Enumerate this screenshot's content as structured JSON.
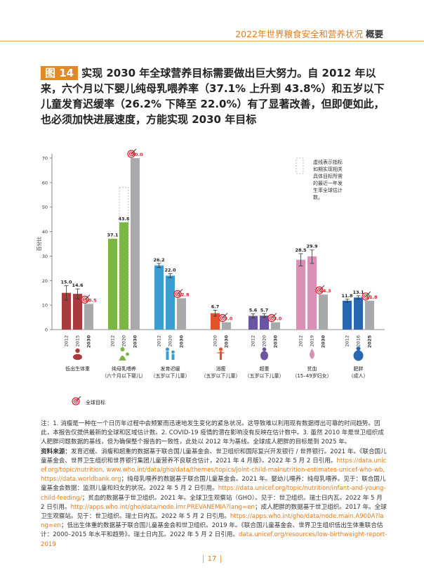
{
  "header": {
    "prefix": "2022年世界粮食安全和营养状况",
    "suffix": "概要"
  },
  "figure": {
    "tag": "图 14",
    "title": "实现 2030 年全球营养目标需要做出巨大努力。自 2012 年以来，六个月以下婴儿纯母乳喂养率（37.1% 上升到 43.8%）和五岁以下儿童发育迟缓率（26.2% 下降至 22.0%）有了显著改善，但即便如此，也必须加快进展速度，方能实现 2030 年目标"
  },
  "colors": {
    "accent": "#e07b1f",
    "dashed": "#aaaaaa",
    "target": "#a7a9ac",
    "target_label": "#e31e2d"
  },
  "chart_data": {
    "type": "bar",
    "ylabel": "百分比",
    "ylim": [
      0,
      70
    ],
    "yticks": [
      0,
      10,
      20,
      30,
      40,
      50,
      60,
      70
    ],
    "legend_dashed": "虚线表示指标如期实现相关具体目标所需的最近一年发生率全球估计数。",
    "legend_target": "全球目标",
    "groups": [
      {
        "id": "lbw",
        "color": "#a93a3e",
        "icon": "baby-icon",
        "label_lines": [
          "低出生体重"
        ],
        "bars": [
          {
            "year": "2012",
            "value": 15.0,
            "label": "15.0",
            "error": [
              12.0,
              18.0
            ]
          },
          {
            "year": "2015",
            "value": 14.6,
            "label": "14.6",
            "error": [
              12.6,
              16.6
            ]
          },
          {
            "year": "2030",
            "value": 10.5,
            "label": "10.5",
            "target": true
          }
        ]
      },
      {
        "id": "ebf",
        "color": "#7ab741",
        "icon": "breastfeeding-icon",
        "label_lines": [
          "纯母乳喂养",
          "（六个月以下婴儿）"
        ],
        "dashed": {
          "value": 58.0
        },
        "bars": [
          {
            "year": "2012",
            "value": 37.1,
            "label": "37.1"
          },
          {
            "year": "2020",
            "value": 43.8,
            "label": "43.8"
          },
          {
            "year": "2030",
            "value": 70.0,
            "label": "70.0",
            "target": true
          }
        ]
      },
      {
        "id": "stunting",
        "color": "#3b9ccf",
        "icon": "stunting-icon",
        "label_lines": [
          "发育迟缓",
          "（五岁以下儿童）"
        ],
        "bars": [
          {
            "year": "2012",
            "value": 26.2,
            "label": "26.2",
            "error": [
              25.4,
              27.0
            ]
          },
          {
            "year": "2020",
            "value": 22.0,
            "label": "22.0",
            "error": [
              21.2,
              22.8
            ]
          },
          {
            "year": "2030",
            "value": 12.8,
            "label": "12.8",
            "target": true
          }
        ]
      },
      {
        "id": "wasting",
        "color": "#e1532b",
        "icon": "wasting-icon",
        "label_lines": [
          "消瘦",
          "（五岁以下儿童）"
        ],
        "bars": [
          {
            "year": "2020",
            "value": 6.7,
            "label": "6.7",
            "error": [
              5.5,
              7.9
            ]
          },
          {
            "year": "2030",
            "value": 3.0,
            "label": "3.0",
            "target": true
          }
        ]
      },
      {
        "id": "overweight",
        "color": "#6a54a3",
        "icon": "overweight-icon",
        "label_lines": [
          "超重",
          "（五岁以下儿童）"
        ],
        "bars": [
          {
            "year": "2012",
            "value": 5.6,
            "label": "5.6",
            "error": [
              4.8,
              6.4
            ]
          },
          {
            "year": "2020",
            "value": 5.7,
            "label": "5.7",
            "error": [
              4.9,
              6.5
            ]
          },
          {
            "year": "2030",
            "value": 3.0,
            "label": "3.0",
            "target": true
          }
        ]
      },
      {
        "id": "anaemia",
        "color": "#d890b7",
        "icon": "anaemia-icon",
        "label_lines": [
          "贫血",
          "（15–49岁妇女）"
        ],
        "bars": [
          {
            "year": "2012",
            "value": 28.5,
            "label": "28.5",
            "error": [
              26.0,
              31.0
            ]
          },
          {
            "year": "2019",
            "value": 29.9,
            "label": "29.9",
            "error": [
              27.0,
              32.5
            ]
          },
          {
            "year": "2030",
            "value": 14.3,
            "label": "14.3",
            "target": true
          }
        ]
      },
      {
        "id": "obesity",
        "color": "#2a67b1",
        "icon": "obesity-icon",
        "label_lines": [
          "肥胖",
          "（成人）"
        ],
        "bars": [
          {
            "year": "2012",
            "value": 11.8,
            "label": "11.8",
            "error": [
              11.2,
              12.4
            ]
          },
          {
            "year": "2016",
            "value": 13.1,
            "label": "13.1",
            "error": [
              12.4,
              13.8
            ]
          },
          {
            "year": "2025",
            "value": 11.8,
            "label": "11.8",
            "target": true
          }
        ]
      }
    ]
  },
  "notes": {
    "note": "注：1. 消瘦是一种在一个日历年过程中会频繁而迅速地发生变化的紧急状况，这导致难以利用现有数据得出可靠的时间趋势。因此，本报告仅提供最新的全球和区域估计数。2. COVID-19 疫情的潜在影响没有反映在估计数中。3. 虽然 2010 年是世卫组织成人肥胖问题数据的基线，但为确保整个报告的一致性，此处以 2012 年为基线。全球成人肥胖的目标是到 2025 年。",
    "sources_label": "资料来源：",
    "sources_1": "发育迟缓、消瘦和超重的数据基于联合国儿童基金会、世卫组织和国际复兴开发银行 / 世界银行。2021 年。《联合国儿童基金会、世界卫生组织和世界银行集团儿童营养不良联合估计，2021 年 4 月版》。2022 年 5 月 2 日引用。",
    "link_1": "https://data.unicef.org/topic/nutrition, www.who.int/data/gho/data/themes/topics/joint-child-malnutrition-estimates-unicef-who-wb, https://data.worldbank.org",
    "sources_2": "；纯母乳喂养的数据基于联合国儿童基金会。2021 年。婴幼儿喂养：纯母乳喂养。见于：联合国儿童基金会数据：监测儿童和妇女的状况。2022 年 5 月 2 日引用。",
    "link_2": "https://data.unicef.org/topic/nutrition/infant-and-young-child-feeding/",
    "sources_3": "；贫血的数据基于世卫组织。2021 年。全球卫生观察站（GHO）。见于：世卫组织。瑞士日内瓦。2022 年 5 月 2 日引用。",
    "link_3": "http://apps.who.int/gho/data/node.imr.PREVANEMIA?lang=en",
    "sources_4": "；成人肥胖的数据基于世卫组织。2017 年。全球卫生观察站。见于：世卫组织。瑞士日内瓦。2022 年 5 月 2 日引用。",
    "link_4": "https://apps.who.int/gho/data/node.main.A900A?lang=en",
    "sources_5": "；低出生体重的数据基于联合国儿童基金会和世卫组织。2019 年。《联合国儿童基金会、世界卫生组织低出生体重联合估计：2000–2015 年水平和趋势》。瑞士日内瓦。2022 年 5 月 2 日引用。",
    "link_5": "data.unicef.org/resources/low-birthweight-report-2019"
  },
  "footer": {
    "page": "17"
  }
}
